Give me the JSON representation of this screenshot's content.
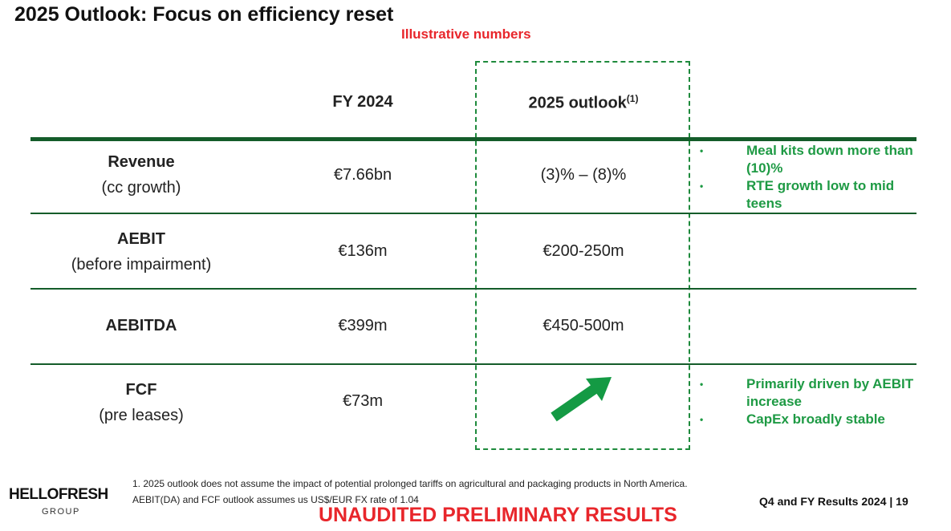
{
  "title": "2025 Outlook: Focus on efficiency reset",
  "illustrative": "Illustrative numbers",
  "headers": {
    "fy2024": "FY 2024",
    "outlook": "2025 outlook",
    "outlook_note": "(1)"
  },
  "rows": [
    {
      "label": "Revenue",
      "sublabel": "(cc growth)",
      "fy2024": "€7.66bn",
      "outlook": "(3)% – (8)%"
    },
    {
      "label": "AEBIT",
      "sublabel": "(before impairment)",
      "fy2024": "€136m",
      "outlook": "€200-250m"
    },
    {
      "label": "AEBITDA",
      "sublabel": "",
      "fy2024": "€399m",
      "outlook": "€450-500m"
    },
    {
      "label": "FCF",
      "sublabel": "(pre leases)",
      "fy2024": "€73m",
      "outlook": ""
    }
  ],
  "notes_revenue": [
    "Meal kits down more than (10)%",
    "RTE growth low to mid teens"
  ],
  "notes_fcf": [
    "Primarily driven by AEBIT increase",
    "CapEx broadly stable"
  ],
  "footer": {
    "logo": "HELLOFRESH",
    "logo_sub": "GROUP",
    "footnote1": "1. 2025 outlook does not assume the impact of potential prolonged tariffs on agricultural and packaging products in North America.",
    "footnote2": "AEBIT(DA) and FCF outlook assumes us US$/EUR FX rate of 1.04",
    "unaudited": "UNAUDITED PRELIMINARY RESULTS",
    "page_label": "Q4 and FY Results 2024 | 19"
  },
  "colors": {
    "green": "#1e9a44",
    "dark_green": "#145c2a",
    "red": "#e8262b"
  }
}
